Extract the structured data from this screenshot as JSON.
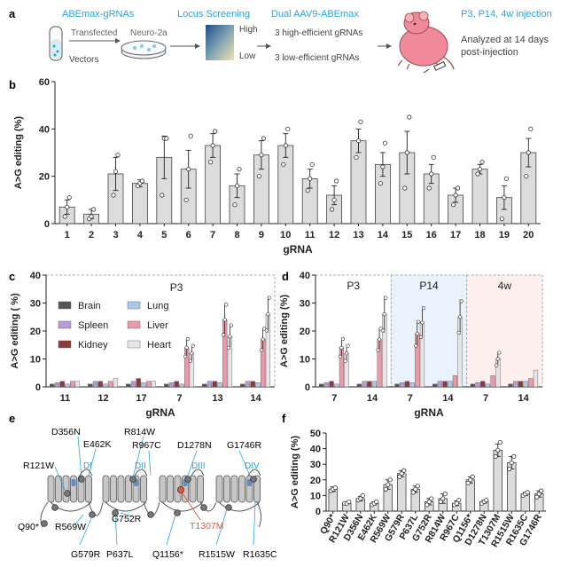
{
  "panel_a": {
    "label": "a",
    "step1_title": "ABEmax-gRNAs",
    "arrow1_label": "Transfected",
    "cell_label": "Neuro-2a",
    "tube_label": "Vectors",
    "step2_title": "Locus Screening",
    "high": "High",
    "low": "Low",
    "step3_title": "Dual AAV9-ABEmax",
    "high_eff": "3 high-efficient gRNAs",
    "low_eff": "3 low-efficient gRNAs",
    "step4_title": "P3, P14, 4w injection",
    "analyzed_line1": "Analyzed at 14 days",
    "analyzed_line2": "post-injection",
    "colors": {
      "title_blue": "#2aa3d8",
      "mouse": "#f08a9a"
    }
  },
  "panel_b": {
    "label": "b"
  },
  "panel_c": {
    "label": "c"
  },
  "panel_d": {
    "label": "d"
  },
  "panel_e": {
    "label": "e",
    "domains": [
      "DI",
      "DII",
      "DIII",
      "DIV"
    ],
    "mutations_top": [
      "D356N",
      "R814W",
      "E462K",
      "R967C",
      "D1278N",
      "G1746R",
      "R121W"
    ],
    "mutations_bottom": [
      "Q90*",
      "R569W",
      "G752R",
      "G579R",
      "P637L",
      "Q1156*",
      "R1515W",
      "R1635C"
    ],
    "highlight": "T1307M",
    "highlight_color": "#e8563f",
    "domain_color": "#2aa3d8"
  },
  "panel_f": {
    "label": "f"
  },
  "chart_data": [
    {
      "panel": "b",
      "type": "bar",
      "xlabel": "gRNA",
      "ylabel": "A>G editing (%)",
      "ylim": [
        0,
        60
      ],
      "yticks": [
        0,
        20,
        40,
        60
      ],
      "categories": [
        "1",
        "2",
        "3",
        "4",
        "5",
        "6",
        "7",
        "8",
        "9",
        "10",
        "11",
        "12",
        "13",
        "14",
        "15",
        "16",
        "17",
        "18",
        "19",
        "20"
      ],
      "values": [
        7,
        4,
        21,
        17,
        28,
        23,
        33,
        16,
        29,
        33,
        19,
        12,
        35,
        25,
        30,
        21,
        12,
        23,
        11,
        30
      ],
      "errors": [
        3,
        2,
        7,
        1.5,
        9,
        8,
        5,
        5,
        6,
        5,
        4,
        4,
        5,
        5,
        9,
        4,
        3,
        2,
        5,
        6
      ],
      "points": [
        [
          3,
          7,
          11
        ],
        [
          2,
          3,
          6
        ],
        [
          12,
          22,
          29
        ],
        [
          16,
          17,
          18
        ],
        [
          12,
          36,
          36
        ],
        [
          10,
          23,
          37
        ],
        [
          26,
          33,
          39
        ],
        [
          8,
          16,
          23
        ],
        [
          20,
          29,
          36
        ],
        [
          25,
          33,
          40
        ],
        [
          14,
          19,
          25
        ],
        [
          6,
          10,
          18
        ],
        [
          28,
          35,
          43
        ],
        [
          17,
          24,
          34
        ],
        [
          15,
          30,
          45
        ],
        [
          15,
          21,
          28
        ],
        [
          8,
          12,
          15
        ],
        [
          21,
          23,
          26
        ],
        [
          2,
          11,
          19
        ],
        [
          20,
          30,
          40
        ]
      ],
      "bar_color": "#dcdcdc",
      "grid": false
    },
    {
      "panel": "c",
      "type": "bar",
      "annotation": "P3",
      "xlabel": "gRNA",
      "ylabel": "A>G editing ( %)",
      "ylim": [
        0,
        40
      ],
      "yticks": [
        0,
        10,
        20,
        30,
        40
      ],
      "categories": [
        "11",
        "12",
        "17",
        "7",
        "13",
        "14"
      ],
      "legend": [
        "Brain",
        "Spleen",
        "Kidney",
        "Lung",
        "Liver",
        "Heart"
      ],
      "legend_placement": "top-left",
      "colors": [
        "#555555",
        "#b89ad6",
        "#8c3a3a",
        "#a9c8ea",
        "#eb9aa8",
        "#e6e6e6"
      ],
      "series": [
        {
          "name": "Brain",
          "values": [
            1,
            1,
            1,
            1,
            1,
            1
          ]
        },
        {
          "name": "Spleen",
          "values": [
            1.5,
            2,
            2,
            1.5,
            2,
            2
          ]
        },
        {
          "name": "Kidney",
          "values": [
            2,
            2,
            3,
            2,
            2,
            2
          ]
        },
        {
          "name": "Lung",
          "values": [
            1,
            1,
            1.5,
            1,
            1.5,
            1.5
          ]
        },
        {
          "name": "Liver",
          "values": [
            2,
            2,
            2,
            14,
            24,
            17
          ]
        },
        {
          "name": "Heart",
          "values": [
            2,
            3,
            2,
            12,
            18,
            26
          ]
        }
      ]
    },
    {
      "panel": "d",
      "type": "bar",
      "xlabel": "gRNA",
      "ylabel": "A>G editing (%)",
      "ylim": [
        0,
        40
      ],
      "yticks": [
        0,
        10,
        20,
        30,
        40
      ],
      "groups": [
        "P3",
        "P14",
        "4w"
      ],
      "group_colors": [
        "#ffffff",
        "#eaf2fd",
        "#fdf0ef"
      ],
      "categories": [
        "7",
        "14",
        "7",
        "14",
        "7",
        "14"
      ],
      "colors": [
        "#555555",
        "#b89ad6",
        "#8c3a3a",
        "#a9c8ea",
        "#eb9aa8",
        "#e6e6e6"
      ],
      "series": [
        {
          "values": [
            1,
            1,
            1,
            1,
            1,
            1
          ]
        },
        {
          "values": [
            1.5,
            2,
            1.5,
            2,
            1.5,
            2
          ]
        },
        {
          "values": [
            2,
            2,
            2,
            2,
            2,
            2
          ]
        },
        {
          "values": [
            1,
            2,
            1.5,
            2,
            1,
            2
          ]
        },
        {
          "values": [
            14,
            17,
            19,
            4,
            4,
            3
          ]
        },
        {
          "values": [
            12,
            26,
            23,
            25,
            10,
            6
          ]
        }
      ]
    },
    {
      "panel": "f",
      "type": "bar",
      "xlabel": "",
      "ylabel": "A>G editing (%)",
      "ylim": [
        0,
        50
      ],
      "yticks": [
        0,
        10,
        20,
        30,
        40,
        50
      ],
      "categories": [
        "Q90*",
        "R121W",
        "D356N",
        "E462K",
        "R569W",
        "G579R",
        "P637L",
        "G752R",
        "R814W",
        "R967C",
        "Q1156*",
        "D1278N",
        "T1307M",
        "R1515W",
        "R1635C",
        "G1746R"
      ],
      "highlight_category": "T1307M",
      "values": [
        14,
        5,
        8,
        5,
        17,
        24,
        14,
        6,
        8,
        5,
        20,
        6,
        39,
        31,
        11,
        11
      ],
      "errors": [
        1.5,
        0.5,
        1.5,
        1,
        3,
        2,
        2,
        2,
        3,
        1.5,
        2,
        1,
        4,
        4,
        1,
        2
      ],
      "points": [
        [
          13,
          14,
          15
        ],
        [
          5,
          5,
          6
        ],
        [
          7,
          8,
          10
        ],
        [
          4,
          5,
          6
        ],
        [
          14,
          17,
          20
        ],
        [
          22,
          24,
          26
        ],
        [
          12,
          14,
          16
        ],
        [
          4,
          6,
          8
        ],
        [
          6,
          8,
          11
        ],
        [
          4,
          5,
          7
        ],
        [
          18,
          20,
          22
        ],
        [
          5,
          6,
          7
        ],
        [
          35,
          39,
          44
        ],
        [
          27,
          31,
          35
        ],
        [
          10,
          11,
          12
        ],
        [
          9,
          11,
          13
        ]
      ],
      "bar_color": "#dcdcdc",
      "grid": false
    }
  ]
}
